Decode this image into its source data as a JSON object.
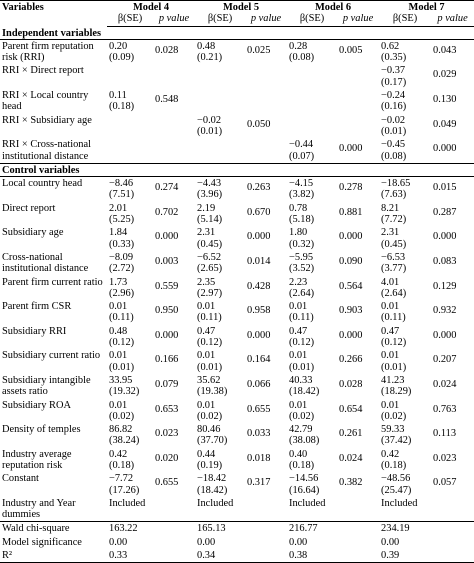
{
  "table": {
    "header": [
      "Variables",
      "Model 4",
      "Model 5",
      "Model 6",
      "Model 7"
    ],
    "subheader": [
      "β(SE)",
      "p value",
      "β(SE)",
      "p value",
      "β(SE)",
      "p value",
      "β(SE)",
      "p value"
    ],
    "sections": [
      {
        "title": "Independent variables",
        "rows": [
          [
            "Parent firm reputation risk (RRI)",
            "0.20\n(0.09)",
            "0.028",
            "0.48\n(0.21)",
            "0.025",
            "0.28\n(0.08)",
            "0.005",
            "0.62\n(0.35)",
            "0.043"
          ],
          [
            "RRI × Direct report",
            null,
            null,
            null,
            null,
            null,
            null,
            "−0.37\n(0.17)",
            "0.029"
          ],
          [
            "RRI × Local country head",
            "0.11\n(0.18)",
            "0.548",
            null,
            null,
            null,
            null,
            "−0.24\n(0.16)",
            "0.130"
          ],
          [
            "RRI × Subsidiary age",
            null,
            null,
            "−0.02\n(0.01)",
            "0.050",
            null,
            null,
            "−0.02\n(0.01)",
            "0.049"
          ],
          [
            "RRI × Cross-national institutional distance",
            null,
            null,
            null,
            null,
            "−0.44\n(0.07)",
            "0.000",
            "−0.45\n(0.08)",
            "0.000"
          ]
        ]
      },
      {
        "title": "Control variables",
        "rows": [
          [
            "Local country head",
            "−8.46\n(7.51)",
            "0.274",
            "−4.43\n(3.96)",
            "0.263",
            "−4.15\n(3.82)",
            "0.278",
            "−18.65\n(7.63)",
            "0.015"
          ],
          [
            "Direct report",
            "2.01\n(5.25)",
            "0.702",
            "2.19\n(5.14)",
            "0.670",
            "0.78\n(5.18)",
            "0.881",
            "8.21\n(7.72)",
            "0.287"
          ],
          [
            "Subsidiary age",
            "1.84\n(0.33)",
            "0.000",
            "2.31\n(0.45)",
            "0.000",
            "1.80\n(0.32)",
            "0.000",
            "2.31\n(0.45)",
            "0.000"
          ],
          [
            "Cross-national institutional distance",
            "−8.09\n(2.72)",
            "0.003",
            "−6.52\n(2.65)",
            "0.014",
            "−5.95\n(3.52)",
            "0.090",
            "−6.53\n(3.77)",
            "0.083"
          ],
          [
            "Parent firm current ratio",
            "1.73\n(2.96)",
            "0.559",
            "2.35\n(2.97)",
            "0.428",
            "2.23\n(2.64)",
            "0.564",
            "4.01\n(2.64)",
            "0.129"
          ],
          [
            "Parent firm CSR",
            "0.01\n(0.11)",
            "0.950",
            "0.01\n(0.11)",
            "0.958",
            "0.01\n(0.11)",
            "0.903",
            "0.01\n(0.11)",
            "0.932"
          ],
          [
            "Subsidiary RRI",
            "0.48\n(0.12)",
            "0.000",
            "0.47\n(0.12)",
            "0.000",
            "0.47\n(0.12)",
            "0.000",
            "0.47\n(0.12)",
            "0.000"
          ],
          [
            "Subsidiary current ratio",
            "0.01\n(0.01)",
            "0.166",
            "0.01\n(0.01)",
            "0.164",
            "0.01\n(0.01)",
            "0.266",
            "0.01\n(0.01)",
            "0.207"
          ],
          [
            "Subsidiary intangible assets ratio",
            "33.95\n(19.32)",
            "0.079",
            "35.62\n(19.38)",
            "0.066",
            "40.33\n(18.42)",
            "0.028",
            "41.23\n(18.29)",
            "0.024"
          ],
          [
            "Subsidiary ROA",
            "0.01\n(0.02)",
            "0.653",
            "0.01\n(0.02)",
            "0.655",
            "0.01\n(0.02)",
            "0.654",
            "0.01\n(0.02)",
            "0.763"
          ],
          [
            "Density of temples",
            "86.82\n(38.24)",
            "0.023",
            "80.46\n(37.70)",
            "0.033",
            "42.79\n(38.08)",
            "0.261",
            "59.33\n(37.42)",
            "0.113"
          ],
          [
            "Industry average reputation risk",
            "0.42\n(0.18)",
            "0.020",
            "0.44\n(0.19)",
            "0.018",
            "0.40\n(0.18)",
            "0.024",
            "0.42\n(0.18)",
            "0.023"
          ],
          [
            "Constant",
            "−7.72\n(17.26)",
            "0.655",
            "−18.42\n(18.42)",
            "0.317",
            "−14.56\n(16.64)",
            "0.382",
            "−48.56\n(25.47)",
            "0.057"
          ],
          [
            "Industry and Year dummies",
            "Included",
            null,
            "Included",
            null,
            "Included",
            null,
            "Included",
            null
          ]
        ]
      },
      {
        "title": null,
        "rows": [
          [
            "Wald chi-square",
            "163.22",
            null,
            "165.13",
            null,
            "216.77",
            null,
            "234.19",
            null
          ],
          [
            "Model significance",
            "0.00",
            null,
            "0.00",
            null,
            "0.00",
            null,
            "0.00",
            null
          ],
          [
            "R²",
            "0.33",
            null,
            "0.34",
            null,
            "0.38",
            null,
            "0.39",
            null
          ]
        ]
      }
    ]
  }
}
